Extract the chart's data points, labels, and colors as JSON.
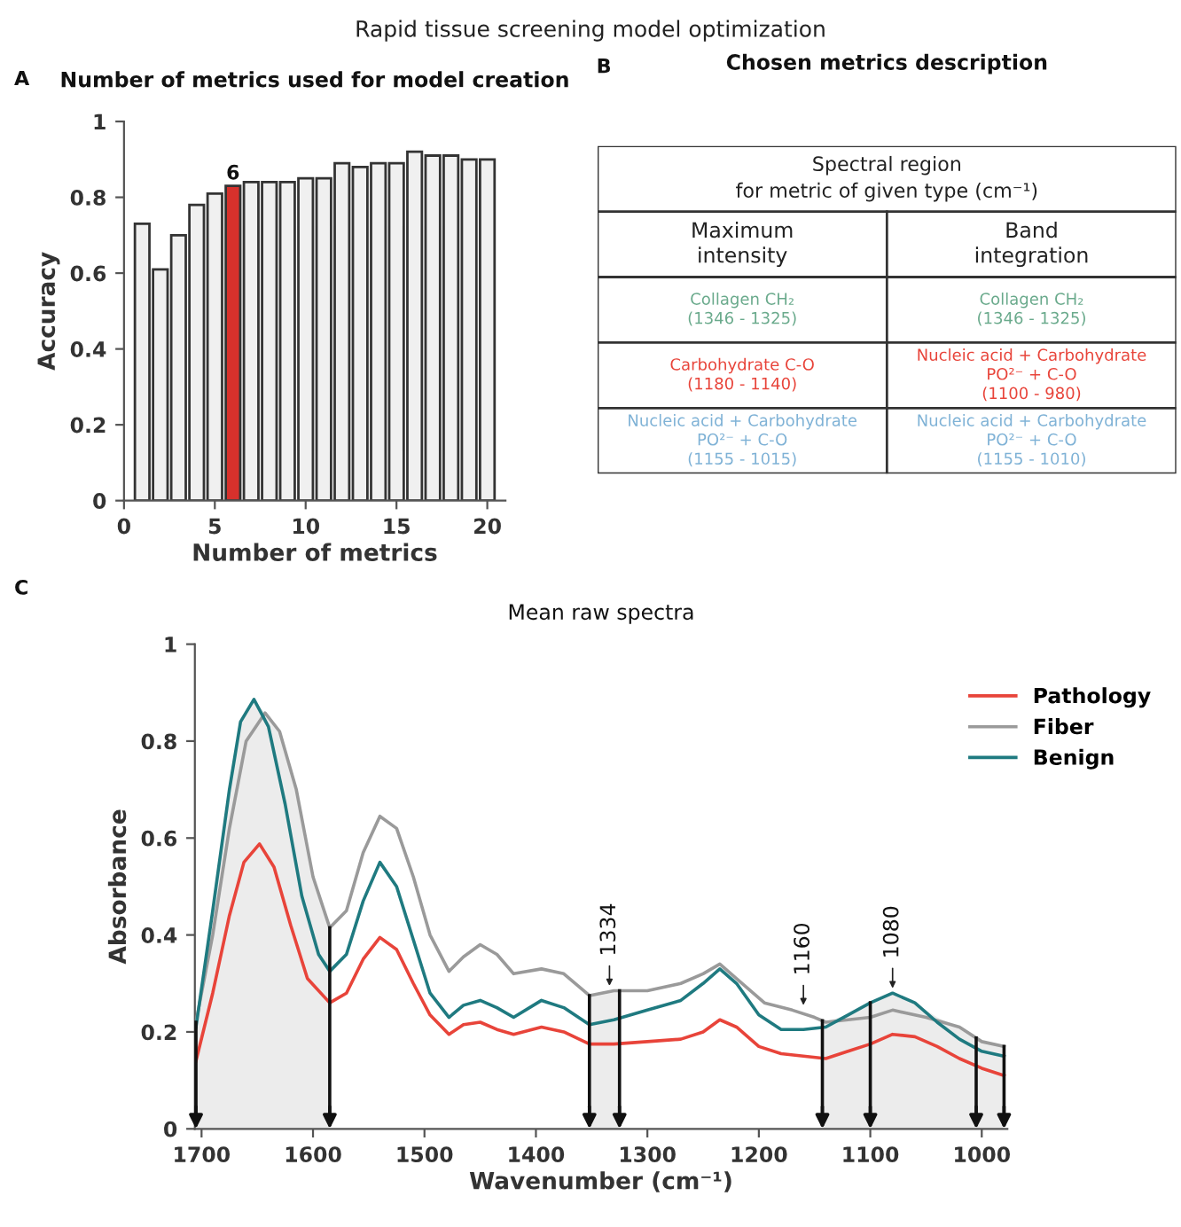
{
  "chart_data": [
    {
      "type": "bar",
      "title": "Number of metrics used for model creation",
      "xlabel": "Number of metrics",
      "ylabel": "Accuracy",
      "x": [
        1,
        2,
        3,
        4,
        5,
        6,
        7,
        8,
        9,
        10,
        11,
        12,
        13,
        14,
        15,
        16,
        17,
        18,
        19,
        20
      ],
      "values": [
        0.73,
        0.61,
        0.7,
        0.78,
        0.81,
        0.83,
        0.84,
        0.84,
        0.84,
        0.85,
        0.85,
        0.89,
        0.88,
        0.89,
        0.89,
        0.92,
        0.91,
        0.91,
        0.9,
        0.9
      ],
      "colors": [
        "#f0f0f0",
        "#f0f0f0",
        "#f0f0f0",
        "#f0f0f0",
        "#f0f0f0",
        "#d7312c",
        "#f0f0f0",
        "#f0f0f0",
        "#f0f0f0",
        "#f0f0f0",
        "#f0f0f0",
        "#f0f0f0",
        "#f0f0f0",
        "#f0f0f0",
        "#f0f0f0",
        "#f0f0f0",
        "#f0f0f0",
        "#f0f0f0",
        "#f0f0f0",
        "#f0f0f0"
      ],
      "xlim": [
        0,
        21
      ],
      "xticks": [
        0,
        5,
        10,
        15,
        20
      ],
      "ylim": [
        0,
        1
      ],
      "yticks": [
        0,
        0.2,
        0.4,
        0.6,
        0.8,
        1
      ],
      "annotations": [
        "Rapid tissue screening model optimization",
        "A",
        {
          "text": "6",
          "x": 6,
          "y": 0.83
        }
      ]
    },
    {
      "type": "other",
      "title": "Chosen metrics description",
      "subtitle": "Spectral region\nfor metric of given type (cm⁻¹)",
      "categories": [
        "Maximum\nintensity",
        "Band\nintegration"
      ],
      "cell_labels": [
        [
          "Collagen CH₂\n(1346 - 1325)",
          "Collagen CH₂\n(1346 - 1325)"
        ],
        [
          "Carbohydrate C-O\n(1180 - 1140)",
          "Nucleic acid + Carbohydrate\nPO²⁻ + C-O\n(1100 - 980)"
        ],
        [
          "Nucleic acid + Carbohydrate\nPO²⁻ + C-O\n(1155 - 1015)",
          "Nucleic acid + Carbohydrate\nPO²⁻ + C-O\n(1155 - 1010)"
        ]
      ],
      "colors": [
        "#6aaa8c",
        "#e8443a",
        "#7fb2d6"
      ],
      "annotations": [
        "B"
      ]
    },
    {
      "type": "line",
      "title": "Mean raw spectra",
      "xlabel": "Wavenumber (cm⁻¹)",
      "ylabel": "Absorbance",
      "xlim": [
        1706,
        977
      ],
      "xticks": [
        1700,
        1600,
        1500,
        1400,
        1300,
        1200,
        1100,
        1000
      ],
      "ylim": [
        0,
        1
      ],
      "yticks": [
        0,
        0.2,
        0.4,
        0.6,
        0.8,
        1
      ],
      "legend": "top right",
      "grid": false,
      "series": [
        {
          "type": "area",
          "color": "#ececec",
          "x": [
            1705,
            1690,
            1675,
            1665,
            1653,
            1643,
            1630,
            1615,
            1600,
            1585
          ],
          "values": [
            0.22,
            0.45,
            0.7,
            0.84,
            0.886,
            0.858,
            0.82,
            0.7,
            0.52,
            0.415
          ]
        },
        {
          "type": "area",
          "color": "#ececec",
          "x": [
            1352,
            1340,
            1325
          ],
          "values": [
            0.275,
            0.28,
            0.285
          ]
        },
        {
          "type": "area",
          "color": "#ececec",
          "x": [
            1143,
            1120,
            1100,
            1080,
            1060,
            1040,
            1020,
            1000,
            980
          ],
          "values": [
            0.22,
            0.235,
            0.26,
            0.28,
            0.26,
            0.23,
            0.21,
            0.18,
            0.17
          ]
        },
        {
          "name": "Pathology",
          "color": "#e8443a",
          "x": [
            1705,
            1690,
            1675,
            1662,
            1648,
            1635,
            1620,
            1605,
            1585,
            1570,
            1555,
            1540,
            1525,
            1510,
            1495,
            1478,
            1465,
            1450,
            1435,
            1420,
            1395,
            1375,
            1352,
            1330,
            1300,
            1270,
            1250,
            1235,
            1220,
            1200,
            1180,
            1160,
            1140,
            1120,
            1100,
            1080,
            1060,
            1040,
            1020,
            1000,
            980
          ],
          "values": [
            0.14,
            0.28,
            0.44,
            0.55,
            0.588,
            0.54,
            0.42,
            0.31,
            0.26,
            0.28,
            0.35,
            0.395,
            0.37,
            0.3,
            0.235,
            0.195,
            0.215,
            0.22,
            0.205,
            0.195,
            0.21,
            0.2,
            0.175,
            0.175,
            0.18,
            0.185,
            0.2,
            0.225,
            0.21,
            0.17,
            0.155,
            0.15,
            0.145,
            0.16,
            0.175,
            0.195,
            0.19,
            0.17,
            0.145,
            0.125,
            0.11
          ]
        },
        {
          "name": "Fiber",
          "color": "#9a9a9a",
          "x": [
            1705,
            1690,
            1675,
            1660,
            1643,
            1630,
            1615,
            1600,
            1585,
            1570,
            1555,
            1540,
            1525,
            1510,
            1495,
            1478,
            1465,
            1450,
            1435,
            1420,
            1395,
            1375,
            1352,
            1330,
            1300,
            1270,
            1250,
            1235,
            1220,
            1195,
            1170,
            1150,
            1140,
            1120,
            1100,
            1080,
            1050,
            1020,
            1000,
            980
          ],
          "values": [
            0.22,
            0.4,
            0.62,
            0.8,
            0.858,
            0.82,
            0.7,
            0.52,
            0.415,
            0.45,
            0.57,
            0.645,
            0.62,
            0.52,
            0.4,
            0.325,
            0.355,
            0.38,
            0.36,
            0.32,
            0.33,
            0.32,
            0.275,
            0.285,
            0.285,
            0.3,
            0.32,
            0.34,
            0.31,
            0.26,
            0.245,
            0.23,
            0.22,
            0.225,
            0.23,
            0.245,
            0.23,
            0.21,
            0.18,
            0.17
          ]
        },
        {
          "name": "Benign",
          "color": "#1f7a80",
          "x": [
            1705,
            1690,
            1675,
            1665,
            1653,
            1640,
            1625,
            1610,
            1595,
            1585,
            1570,
            1555,
            1540,
            1525,
            1510,
            1495,
            1478,
            1465,
            1450,
            1435,
            1420,
            1395,
            1375,
            1352,
            1330,
            1300,
            1270,
            1250,
            1235,
            1220,
            1200,
            1180,
            1160,
            1140,
            1120,
            1100,
            1080,
            1060,
            1040,
            1020,
            1000,
            980
          ],
          "values": [
            0.21,
            0.45,
            0.7,
            0.84,
            0.886,
            0.83,
            0.67,
            0.48,
            0.36,
            0.325,
            0.36,
            0.47,
            0.55,
            0.5,
            0.39,
            0.28,
            0.23,
            0.255,
            0.265,
            0.25,
            0.23,
            0.265,
            0.25,
            0.215,
            0.225,
            0.245,
            0.265,
            0.3,
            0.33,
            0.3,
            0.235,
            0.205,
            0.205,
            0.21,
            0.235,
            0.26,
            0.28,
            0.26,
            0.22,
            0.185,
            0.16,
            0.15
          ]
        }
      ],
      "ref_lines": [
        {
          "axis": "x",
          "value": 1705,
          "color": "#111111"
        },
        {
          "axis": "x",
          "value": 1585,
          "color": "#111111"
        },
        {
          "axis": "x",
          "value": 1352,
          "color": "#111111"
        },
        {
          "axis": "x",
          "value": 1325,
          "color": "#111111"
        },
        {
          "axis": "x",
          "value": 1143,
          "color": "#111111"
        },
        {
          "axis": "x",
          "value": 1100,
          "color": "#111111"
        },
        {
          "axis": "x",
          "value": 1005,
          "color": "#111111"
        },
        {
          "axis": "x",
          "value": 980,
          "color": "#111111"
        }
      ],
      "annotations": [
        "C",
        {
          "text": "1334",
          "x": 1334,
          "y": 0.285
        },
        {
          "text": "1160",
          "x": 1160,
          "y": 0.245
        },
        {
          "text": "1080",
          "x": 1080,
          "y": 0.28
        }
      ]
    }
  ]
}
